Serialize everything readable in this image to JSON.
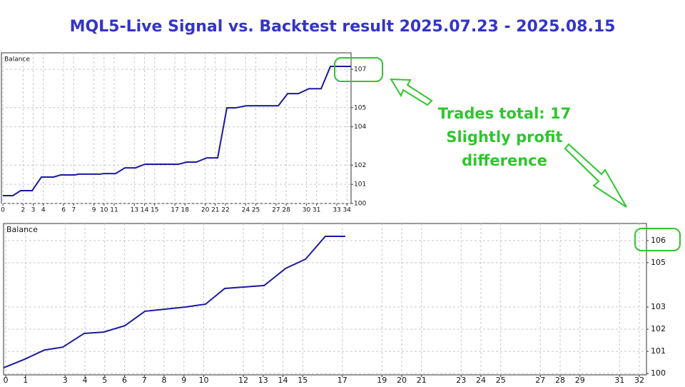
{
  "title": "MQL5-Live Signal vs. Backtest result 2025.07.23 - 2025.08.15",
  "annotations": [
    "Trades total: 17",
    "Slightly profit",
    "difference"
  ],
  "chart_data": [
    {
      "type": "line",
      "x": [
        0,
        0.99,
        1.76,
        2.89,
        3.81,
        5.01,
        5.71,
        7.12,
        7.48,
        9.59,
        9.94,
        11.14,
        12.06,
        13.12,
        14.03,
        17.35,
        18.19,
        19.11,
        20.17,
        21.23,
        22.14,
        22.99,
        24.05,
        27.22,
        28.14,
        29.2,
        30.25,
        31.45,
        32.37,
        34.41
      ],
      "series": [
        {
          "name": "Balance",
          "color": "#1a1a9c",
          "values": [
            100.41,
            100.41,
            100.67,
            100.67,
            101.38,
            101.38,
            101.49,
            101.49,
            101.53,
            101.53,
            101.56,
            101.56,
            101.86,
            101.86,
            102.05,
            102.05,
            102.16,
            102.16,
            102.38,
            102.38,
            104.99,
            104.99,
            105.1,
            105.1,
            105.73,
            105.73,
            105.99,
            105.99,
            107.15,
            107.15
          ]
        }
      ],
      "xlim": [
        -0.14,
        34.41
      ],
      "ylim": [
        100,
        107.86
      ],
      "xticks": [
        0,
        2,
        3,
        4,
        6,
        7,
        9,
        10,
        11,
        13,
        14,
        15,
        17,
        18,
        20,
        21,
        22,
        24,
        25,
        27,
        28,
        30,
        31,
        33,
        34
      ],
      "yticks": [
        100,
        101,
        102,
        104,
        105,
        107
      ],
      "grid": true
    },
    {
      "type": "line",
      "x": [
        -0.11,
        0.97,
        1.95,
        2.88,
        3.96,
        4.94,
        6.02,
        7.03,
        8.0,
        9.08,
        10.09,
        11.06,
        11.96,
        13.05,
        14.13,
        15.14,
        16.14,
        17.15
      ],
      "series": [
        {
          "name": "Balance",
          "color": "#1a1a9c",
          "values": [
            100.26,
            100.65,
            101.06,
            101.19,
            101.81,
            101.87,
            102.16,
            102.81,
            102.9,
            103.0,
            103.13,
            103.84,
            103.9,
            103.97,
            104.74,
            105.16,
            106.19,
            106.19
          ]
        }
      ],
      "xlim": [
        -0.11,
        32.36
      ],
      "ylim": [
        99.94,
        106.77
      ],
      "xticks": [
        0,
        1,
        3,
        4,
        5,
        6,
        7,
        8,
        9,
        10,
        12,
        13,
        14,
        15,
        17,
        19,
        20,
        21,
        23,
        24,
        25,
        27,
        28,
        29,
        31,
        32
      ],
      "yticks": [
        100,
        101,
        102,
        103,
        105,
        106
      ],
      "grid": true
    }
  ]
}
